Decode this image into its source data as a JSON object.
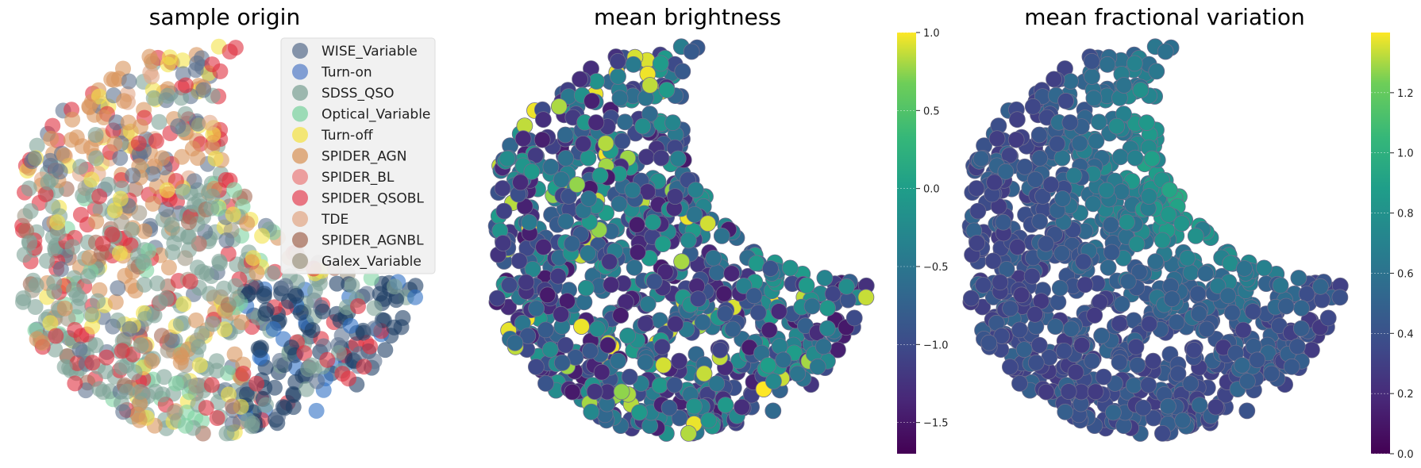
{
  "chart_data": [
    {
      "type": "scatter",
      "title": "sample origin",
      "xlabel": "",
      "ylabel": "",
      "axes": "off",
      "legend_position": "upper right",
      "legend_entries": [
        {
          "name": "WISE_Variable",
          "color": "#5f7390"
        },
        {
          "name": "Turn-on",
          "color": "#5b82c8"
        },
        {
          "name": "SDSS_QSO",
          "color": "#7fa397"
        },
        {
          "name": "Optical_Variable",
          "color": "#7fd3a2"
        },
        {
          "name": "Turn-off",
          "color": "#f3e24a"
        },
        {
          "name": "SPIDER_AGN",
          "color": "#d8955c"
        },
        {
          "name": "SPIDER_BL",
          "color": "#e98181"
        },
        {
          "name": "SPIDER_QSOBL",
          "color": "#e44b5c"
        },
        {
          "name": "TDE",
          "color": "#e2a989"
        },
        {
          "name": "SPIDER_AGNBL",
          "color": "#a66e5a"
        },
        {
          "name": "Galex_Variable",
          "color": "#a19a87"
        }
      ],
      "series_description": "Points colored by sample origin over a crescent-shaped 2D embedding"
    },
    {
      "type": "scatter",
      "title": "mean brightness",
      "axes": "off",
      "colormap": "viridis",
      "colorbar": {
        "min": -1.7,
        "max": 1.0,
        "ticks": [
          "1.0",
          "0.5",
          "0.0",
          "−0.5",
          "−1.0",
          "−1.5"
        ],
        "tick_values": [
          1.0,
          0.5,
          0.0,
          -0.5,
          -1.0,
          -1.5
        ]
      }
    },
    {
      "type": "scatter",
      "title": "mean fractional variation",
      "axes": "off",
      "colormap": "viridis",
      "colorbar": {
        "min": 0.0,
        "max": 1.4,
        "ticks": [
          "1.2",
          "1.0",
          "0.8",
          "0.6",
          "0.4",
          "0.2",
          "0.0"
        ],
        "tick_values": [
          1.2,
          1.0,
          0.8,
          0.6,
          0.4,
          0.2,
          0.0
        ]
      }
    }
  ]
}
